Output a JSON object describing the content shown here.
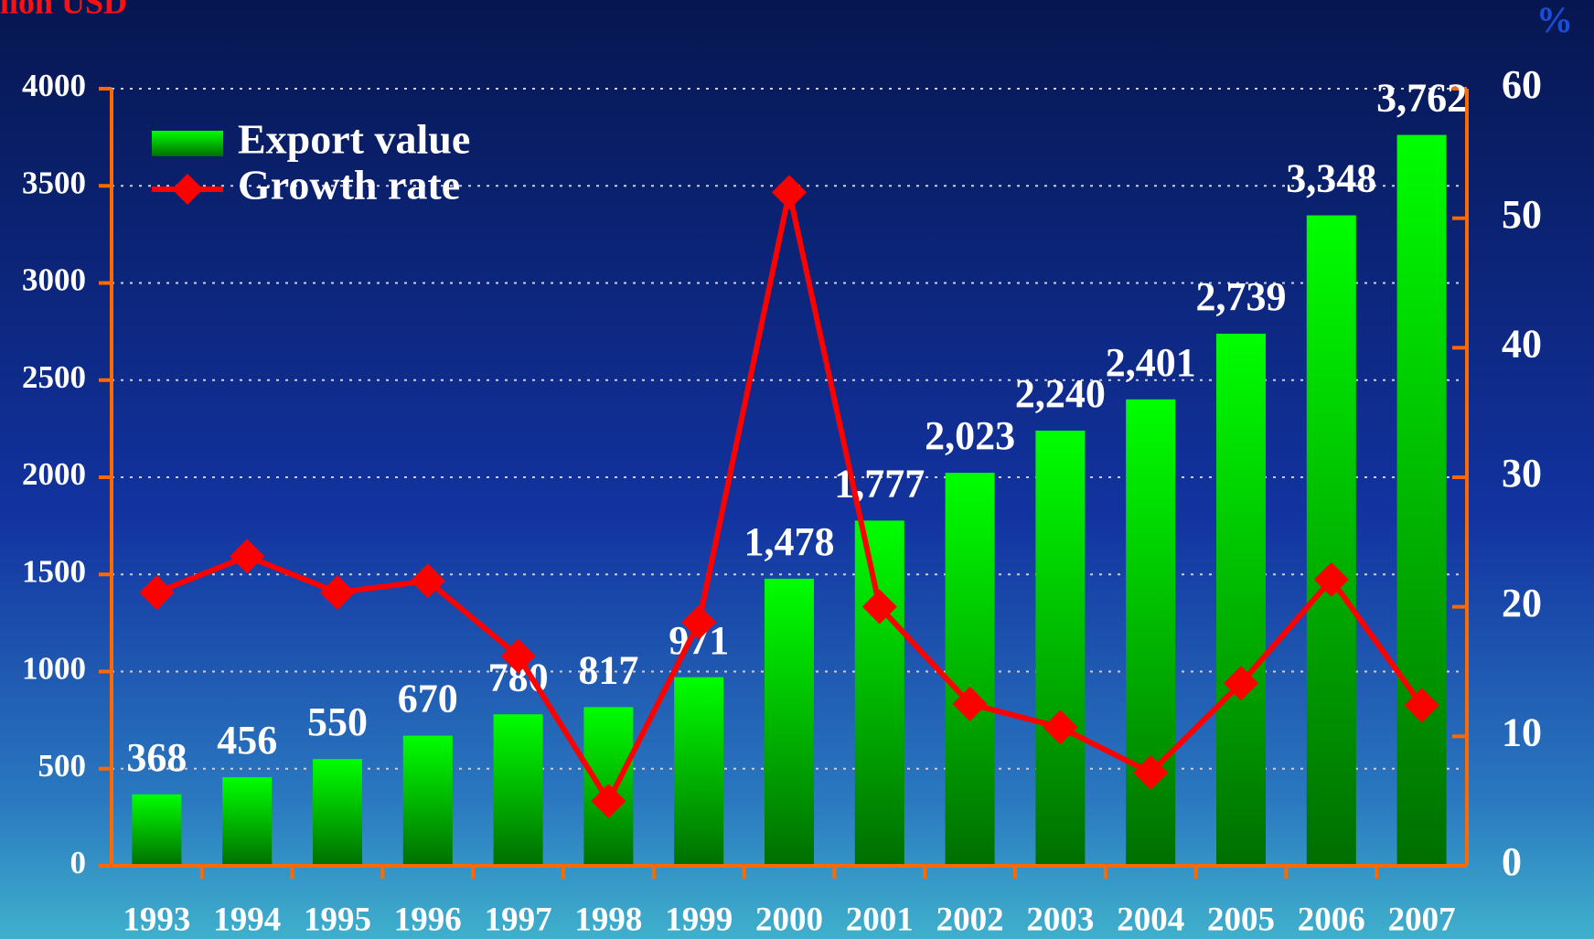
{
  "chart_data": {
    "type": "bar",
    "ylabel": "Million USD",
    "y2label": "%",
    "categories": [
      "1993",
      "1994",
      "1995",
      "1996",
      "1997",
      "1998",
      "1999",
      "2000",
      "2001",
      "2002",
      "2003",
      "2004",
      "2005",
      "2006",
      "2007"
    ],
    "series": [
      {
        "name": "Export value",
        "type": "bar",
        "color": "#00e600",
        "values": [
          368,
          456,
          550,
          670,
          780,
          817,
          971,
          1478,
          1777,
          2023,
          2240,
          2401,
          2739,
          3348,
          3762
        ],
        "value_labels": [
          "368",
          "456",
          "550",
          "670",
          "780",
          "817",
          "971",
          "1,478",
          "1,777",
          "2,023",
          "2,240",
          "2,401",
          "2,739",
          "3,348",
          "3,762"
        ]
      },
      {
        "name": "Growth rate",
        "type": "line",
        "color": "#ff0000",
        "axis": "y2",
        "values": [
          21.1,
          23.9,
          21.1,
          22.0,
          16.2,
          5.0,
          18.8,
          52.0,
          20.0,
          12.5,
          10.7,
          7.2,
          14.1,
          22.1,
          12.4
        ]
      }
    ],
    "ylim": [
      0,
      4000
    ],
    "yticks": [
      0,
      500,
      1000,
      1500,
      2000,
      2500,
      3000,
      3500,
      4000
    ],
    "y2lim": [
      0,
      60
    ],
    "y2ticks": [
      0,
      10,
      20,
      30,
      40,
      50,
      60
    ],
    "grid": true,
    "legend": "upper left",
    "axis_color": "#ff6a00"
  }
}
